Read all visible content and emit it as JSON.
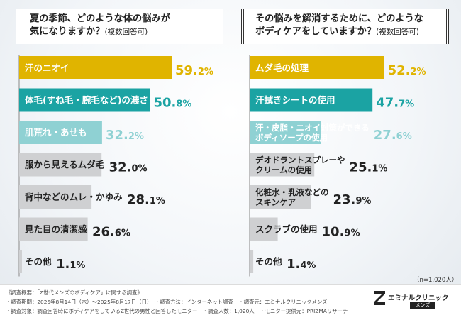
{
  "questions": {
    "left": {
      "line1": "夏の季節、どのような体の悩みが",
      "line2": "気になりますか？",
      "note": "(複数回答可)"
    },
    "right": {
      "line1": "その悩みを解消するために、どのような",
      "line2": "ボディケアをしていますか？",
      "note": "(複数回答可)"
    }
  },
  "colors": {
    "gold": "#e0b400",
    "teal": "#1ba3a3",
    "light_teal": "#8fd1d3",
    "gray": "#cfd0d2",
    "text_light": "#ffffff",
    "text_dark": "#222222"
  },
  "chart_data": [
    {
      "type": "bar",
      "orientation": "horizontal",
      "categories": [
        "汗のニオイ",
        "体毛(すね毛・腕毛など)の濃さ",
        "肌荒れ・あせも",
        "服から見えるムダ毛",
        "背中などのムレ・かゆみ",
        "見た目の清潔感",
        "その他"
      ],
      "values": [
        59.2,
        50.8,
        32.2,
        32.0,
        28.1,
        26.6,
        1.1
      ],
      "unit": "%"
    },
    {
      "type": "bar",
      "orientation": "horizontal",
      "categories": [
        "ムダ毛の処理",
        "汗拭きシートの使用",
        "汗・皮脂・ニオイ対策ができる\nボディソープの使用",
        "デオドラントスプレーや\nクリームの使用",
        "化粧水・乳液などの\nスキンケア",
        "スクラブの使用",
        "その他"
      ],
      "values": [
        52.2,
        47.7,
        27.6,
        25.1,
        23.9,
        10.9,
        1.4
      ],
      "unit": "%"
    }
  ],
  "sample_size": "（n=1,020人）",
  "footer": {
    "line1": "《調査概要：「Z世代メンズのボディケア」に関する調査》",
    "line2": "・調査期間：2025年8月14日（木）～2025年8月17日（日）　・調査方法：インターネット調査　・調査元：エミナルクリニックメンズ",
    "line3": "・調査対象：調査回答時にボディケアをしているZ世代の男性と回答したモニター　・調査人数：1,020人　・モニター提供元：PRIZMAリサーチ"
  },
  "logo": {
    "name": "エミナルクリニック",
    "sub": "メンズ"
  }
}
